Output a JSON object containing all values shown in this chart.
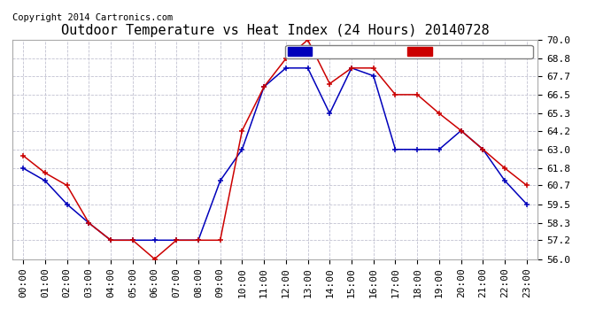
{
  "title": "Outdoor Temperature vs Heat Index (24 Hours) 20140728",
  "copyright": "Copyright 2014 Cartronics.com",
  "background_color": "#ffffff",
  "plot_bg_color": "#ffffff",
  "grid_color": "#bbbbcc",
  "ylim": [
    56.0,
    70.0
  ],
  "yticks": [
    56.0,
    57.2,
    58.3,
    59.5,
    60.7,
    61.8,
    63.0,
    64.2,
    65.3,
    66.5,
    67.7,
    68.8,
    70.0
  ],
  "hours": [
    "00:00",
    "01:00",
    "02:00",
    "03:00",
    "04:00",
    "05:00",
    "06:00",
    "07:00",
    "08:00",
    "09:00",
    "10:00",
    "11:00",
    "12:00",
    "13:00",
    "14:00",
    "15:00",
    "16:00",
    "17:00",
    "18:00",
    "19:00",
    "20:00",
    "21:00",
    "22:00",
    "23:00"
  ],
  "heat_index": [
    61.8,
    61.0,
    59.5,
    58.3,
    57.2,
    57.2,
    57.2,
    57.2,
    57.2,
    61.0,
    63.0,
    67.0,
    68.2,
    68.2,
    65.3,
    68.2,
    67.7,
    63.0,
    63.0,
    63.0,
    64.2,
    63.0,
    61.0,
    59.5
  ],
  "temperature": [
    62.6,
    61.5,
    60.7,
    58.3,
    57.2,
    57.2,
    56.0,
    57.2,
    57.2,
    57.2,
    64.2,
    67.0,
    68.8,
    70.0,
    67.2,
    68.2,
    68.2,
    66.5,
    66.5,
    65.3,
    64.2,
    63.0,
    61.8,
    60.7
  ],
  "heat_index_color": "#0000bb",
  "temperature_color": "#cc0000",
  "legend_hi_bg": "#0000bb",
  "legend_temp_bg": "#cc0000",
  "legend_text_color": "#ffffff",
  "title_fontsize": 11,
  "tick_fontsize": 8,
  "copyright_fontsize": 7.5
}
